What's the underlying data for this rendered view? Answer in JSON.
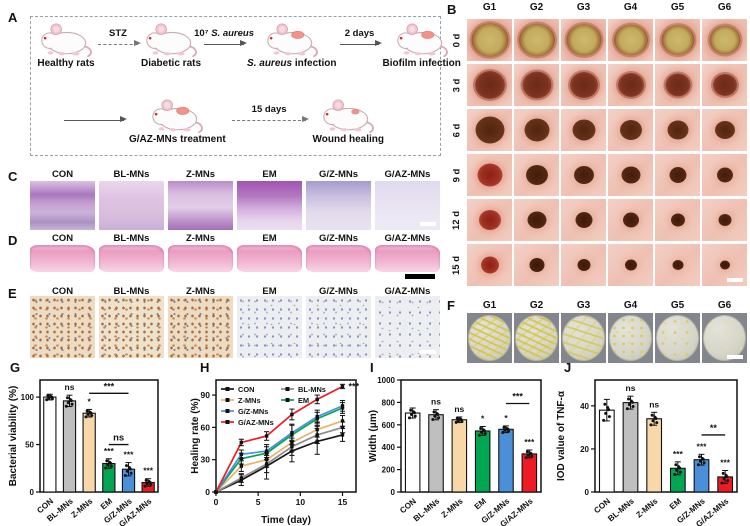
{
  "panelA": {
    "label": "A",
    "row1_steps": [
      {
        "caption": "Healthy rats",
        "wound": "none"
      },
      {
        "caption": "Diabetic rats",
        "wound": "none"
      },
      {
        "caption_italic": "S. aureus",
        "caption_rest": " infection",
        "wound": "big"
      },
      {
        "caption": "Biofilm infection",
        "wound": "big"
      }
    ],
    "row1_arrows": [
      {
        "label": "STZ",
        "dashed": true
      },
      {
        "label_prefix": "10⁷ ",
        "label_italic": "S. aureus",
        "dashed": false
      },
      {
        "label": "2 days",
        "dashed": false
      }
    ],
    "row2_steps": [
      {
        "caption": "G/AZ-MNs treatment",
        "wound": "big"
      },
      {
        "caption": "Wound healing",
        "wound": "small"
      }
    ],
    "row2_arrows": [
      {
        "label": "",
        "dashed": false
      },
      {
        "label": "15 days",
        "dashed": true
      }
    ]
  },
  "panelB": {
    "label": "B",
    "columns": [
      "G1",
      "G2",
      "G3",
      "G4",
      "G5",
      "G6"
    ],
    "rows": [
      "0 d",
      "3 d",
      "6 d",
      "9 d",
      "12 d",
      "15 d"
    ]
  },
  "panelC": {
    "label": "C",
    "columns": [
      "CON",
      "BL-MNs",
      "Z-MNs",
      "EM",
      "G/Z-MNs",
      "G/AZ-MNs"
    ]
  },
  "panelD": {
    "label": "D",
    "columns": [
      "CON",
      "BL-MNs",
      "Z-MNs",
      "EM",
      "G/Z-MNs",
      "G/AZ-MNs"
    ]
  },
  "panelE": {
    "label": "E",
    "columns": [
      "CON",
      "BL-MNs",
      "Z-MNs",
      "EM",
      "G/Z-MNs",
      "G/AZ-MNs"
    ]
  },
  "panelF": {
    "label": "F",
    "columns": [
      "G1",
      "G2",
      "G3",
      "G4",
      "G5",
      "G6"
    ]
  },
  "chart_labels": {
    "g": "G",
    "h": "H",
    "i": "I",
    "j": "J"
  },
  "chart_data": [
    {
      "id": "G",
      "type": "bar",
      "ylabel": "Bacterial viability (%)",
      "ylim": [
        0,
        118
      ],
      "yticks": [
        0,
        50,
        100
      ],
      "categories": [
        "CON",
        "BL-MNs",
        "Z-MNs",
        "EM",
        "G/Z-MNs",
        "G/AZ-MNs"
      ],
      "values": [
        100,
        96,
        83,
        30,
        24,
        10
      ],
      "errors": [
        3,
        6,
        4,
        5,
        7,
        4
      ],
      "colors": [
        "#ffffff",
        "#bfbfbf",
        "#f8d8a8",
        "#00a651",
        "#4a90d9",
        "#ed1c24"
      ],
      "sig": [
        "",
        "ns",
        "*",
        "***",
        "***",
        "***"
      ],
      "brackets": [
        {
          "from": 2,
          "to": 4,
          "label": "***",
          "y": 104
        },
        {
          "from": 3,
          "to": 4,
          "label": "ns",
          "y": 50
        }
      ]
    },
    {
      "id": "H",
      "type": "line",
      "xlabel": "Time (day)",
      "ylabel": "Healing rate (%)",
      "xlim": [
        0,
        16.6
      ],
      "xticks": [
        0,
        5,
        10,
        15
      ],
      "ylim": [
        0,
        104
      ],
      "yticks": [
        0,
        30,
        60,
        90
      ],
      "x": [
        0,
        3,
        6,
        9,
        12,
        15
      ],
      "series": [
        {
          "name": "CON",
          "color": "#1a1a1a",
          "values": [
            0,
            11,
            24,
            38,
            47,
            53
          ],
          "errors": [
            0,
            5,
            12,
            10,
            12,
            6
          ]
        },
        {
          "name": "BL-MNs",
          "color": "#8c8c8c",
          "values": [
            0,
            13,
            26,
            42,
            53,
            60
          ],
          "errors": [
            0,
            4,
            8,
            8,
            8,
            5
          ]
        },
        {
          "name": "Z-MNs",
          "color": "#e8b36a",
          "values": [
            0,
            24,
            30,
            46,
            58,
            66
          ],
          "errors": [
            0,
            5,
            7,
            8,
            7,
            5
          ]
        },
        {
          "name": "EM",
          "color": "#00a651",
          "values": [
            0,
            31,
            36,
            53,
            68,
            78
          ],
          "errors": [
            0,
            5,
            6,
            9,
            6,
            5
          ]
        },
        {
          "name": "G/Z-MNs",
          "color": "#4a90d9",
          "values": [
            0,
            35,
            38,
            55,
            70,
            80
          ],
          "errors": [
            0,
            4,
            6,
            8,
            6,
            5
          ]
        },
        {
          "name": "G/AZ-MNs",
          "color": "#ed1c24",
          "values": [
            0,
            46,
            52,
            72,
            86,
            98
          ],
          "errors": [
            0,
            3,
            4,
            5,
            4,
            2
          ]
        }
      ],
      "legend": [
        [
          "CON",
          "BL-MNs"
        ],
        [
          "Z-MNs",
          "EM"
        ],
        [
          "G/Z-MNs"
        ],
        [
          "G/AZ-MNs"
        ]
      ],
      "sig_label": "***"
    },
    {
      "id": "I",
      "type": "bar",
      "ylabel": "Width (μm)",
      "ylim": [
        0,
        1000
      ],
      "yticks": [
        0,
        200,
        400,
        600,
        800,
        1000
      ],
      "categories": [
        "CON",
        "BL-MNs",
        "Z-MNs",
        "EM",
        "G/Z-MNs",
        "G/AZ-MNs"
      ],
      "values": [
        705,
        690,
        645,
        545,
        560,
        340
      ],
      "errors": [
        45,
        45,
        25,
        40,
        30,
        35
      ],
      "colors": [
        "#ffffff",
        "#bfbfbf",
        "#f8d8a8",
        "#00a651",
        "#4a90d9",
        "#ed1c24"
      ],
      "sig": [
        "",
        "ns",
        "ns",
        "*",
        "*",
        "***"
      ],
      "brackets": [
        {
          "from": 4,
          "to": 5,
          "label": "***",
          "y": 790
        }
      ]
    },
    {
      "id": "J",
      "type": "bar",
      "ylabel": "IOD value of TNF-α",
      "ylim": [
        0,
        52
      ],
      "yticks": [
        0,
        20,
        40
      ],
      "categories": [
        "CON",
        "BL-MNs",
        "Z-MNs",
        "EM",
        "G/Z-MNs",
        "G/AZ-MNs"
      ],
      "values": [
        38,
        41.5,
        34,
        11,
        15,
        7
      ],
      "errors": [
        5,
        3,
        3,
        3,
        2.5,
        3
      ],
      "colors": [
        "#ffffff",
        "#bfbfbf",
        "#f8d8a8",
        "#00a651",
        "#4a90d9",
        "#ed1c24"
      ],
      "sig": [
        "",
        "ns",
        "ns",
        "***",
        "***",
        "***"
      ],
      "brackets": [
        {
          "from": 4,
          "to": 5,
          "label": "**",
          "y": 26.5
        }
      ]
    }
  ]
}
